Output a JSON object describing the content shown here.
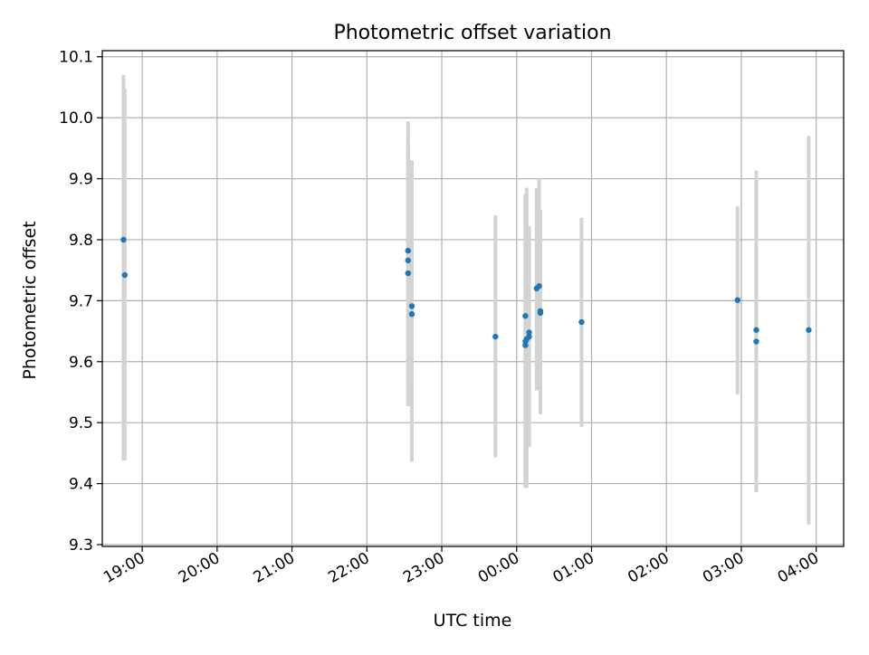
{
  "chart_data": {
    "type": "scatter",
    "title": "Photometric offset variation",
    "xlabel": "UTC time",
    "ylabel": "Photometric offset",
    "x_ticks": [
      "19:00",
      "20:00",
      "21:00",
      "22:00",
      "23:00",
      "00:00",
      "01:00",
      "02:00",
      "03:00",
      "04:00"
    ],
    "y_ticks": [
      "9.3",
      "9.4",
      "9.5",
      "9.6",
      "9.7",
      "9.8",
      "9.9",
      "10.0",
      "10.1"
    ],
    "xlim": [
      "18:28",
      "04:22"
    ],
    "ylim": [
      9.297,
      10.11
    ],
    "grid": true,
    "series": [
      {
        "color": "#1f77b4",
        "errorbar_color": "#d3d3d3",
        "points": [
          {
            "x": "18:45",
            "y": 9.8,
            "ylo": 9.438,
            "yhi": 10.07
          },
          {
            "x": "18:46",
            "y": 9.742,
            "ylo": 9.438,
            "yhi": 10.048
          },
          {
            "x": "22:33",
            "y": 9.782,
            "ylo": 9.527,
            "yhi": 9.994
          },
          {
            "x": "22:33",
            "y": 9.766,
            "ylo": 9.57,
            "yhi": 9.962
          },
          {
            "x": "22:33",
            "y": 9.745,
            "ylo": 9.527,
            "yhi": 9.95
          },
          {
            "x": "22:36",
            "y": 9.691,
            "ylo": 9.436,
            "yhi": 9.93
          },
          {
            "x": "22:36",
            "y": 9.678,
            "ylo": 9.436,
            "yhi": 9.93
          },
          {
            "x": "23:43",
            "y": 9.641,
            "ylo": 9.443,
            "yhi": 9.84
          },
          {
            "x": "00:07",
            "y": 9.675,
            "ylo": 9.393,
            "yhi": 9.874
          },
          {
            "x": "00:07",
            "y": 9.633,
            "ylo": 9.393,
            "yhi": 9.874
          },
          {
            "x": "00:07",
            "y": 9.627,
            "ylo": 9.393,
            "yhi": 9.874
          },
          {
            "x": "00:08",
            "y": 9.637,
            "ylo": 9.393,
            "yhi": 9.885
          },
          {
            "x": "00:10",
            "y": 9.648,
            "ylo": 9.46,
            "yhi": 9.822
          },
          {
            "x": "00:10",
            "y": 9.641,
            "ylo": 9.46,
            "yhi": 9.822
          },
          {
            "x": "00:16",
            "y": 9.72,
            "ylo": 9.553,
            "yhi": 9.885
          },
          {
            "x": "00:18",
            "y": 9.724,
            "ylo": 9.553,
            "yhi": 9.9
          },
          {
            "x": "00:19",
            "y": 9.68,
            "ylo": 9.514,
            "yhi": 9.848
          },
          {
            "x": "00:19",
            "y": 9.683,
            "ylo": 9.514,
            "yhi": 9.848
          },
          {
            "x": "00:52",
            "y": 9.665,
            "ylo": 9.493,
            "yhi": 9.836
          },
          {
            "x": "02:57",
            "y": 9.701,
            "ylo": 9.546,
            "yhi": 9.855
          },
          {
            "x": "03:12",
            "y": 9.652,
            "ylo": 9.386,
            "yhi": 9.913
          },
          {
            "x": "03:12",
            "y": 9.633,
            "ylo": 9.386,
            "yhi": 9.913
          },
          {
            "x": "03:54",
            "y": 9.652,
            "ylo": 9.333,
            "yhi": 9.97
          }
        ]
      }
    ]
  }
}
